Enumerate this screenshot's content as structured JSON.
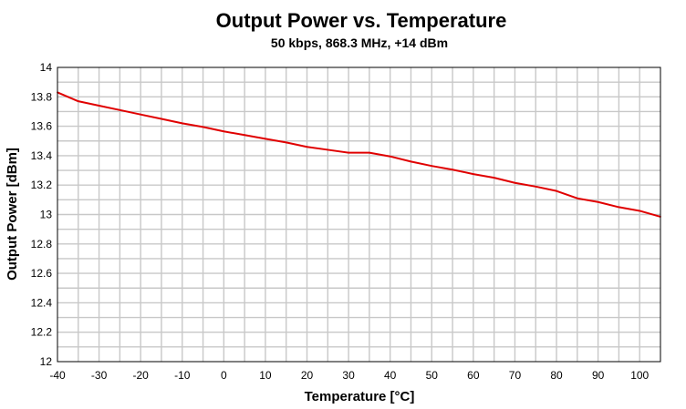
{
  "chart_data": {
    "type": "line",
    "title": "Output Power vs. Temperature",
    "subtitle": "50 kbps, 868.3 MHz, +14 dBm",
    "xlabel": "Temperature [°C]",
    "ylabel": "Output Power [dBm]",
    "xlim": [
      -40,
      105
    ],
    "ylim": [
      12,
      14
    ],
    "x_ticks": [
      -40,
      -30,
      -20,
      -10,
      0,
      10,
      20,
      30,
      40,
      50,
      60,
      70,
      80,
      90,
      100
    ],
    "x_tick_labels": [
      "-40",
      "-30",
      "-20",
      "-10",
      "0",
      "10",
      "20",
      "30",
      "40",
      "50",
      "60",
      "70",
      "80",
      "90",
      "100"
    ],
    "y_ticks": [
      12,
      12.2,
      12.4,
      12.6,
      12.8,
      13,
      13.2,
      13.4,
      13.6,
      13.8,
      14
    ],
    "y_tick_labels": [
      "12",
      "12.2",
      "12.4",
      "12.6",
      "12.8",
      "13",
      "13.2",
      "13.4",
      "13.6",
      "13.8",
      "14"
    ],
    "x_minor_step": 5,
    "y_minor_step": 0.1,
    "grid": true,
    "series": [
      {
        "name": "Output Power",
        "color": "#e00000",
        "x": [
          -40,
          -35,
          -30,
          -25,
          -20,
          -15,
          -10,
          -5,
          0,
          5,
          10,
          15,
          20,
          25,
          30,
          35,
          40,
          45,
          50,
          55,
          60,
          65,
          70,
          75,
          80,
          85,
          90,
          95,
          100,
          105
        ],
        "y": [
          13.83,
          13.77,
          13.74,
          13.71,
          13.68,
          13.65,
          13.62,
          13.595,
          13.565,
          13.54,
          13.515,
          13.49,
          13.46,
          13.44,
          13.42,
          13.42,
          13.395,
          13.36,
          13.33,
          13.305,
          13.275,
          13.25,
          13.215,
          13.19,
          13.16,
          13.11,
          13.085,
          13.05,
          13.025,
          12.985
        ]
      }
    ]
  }
}
